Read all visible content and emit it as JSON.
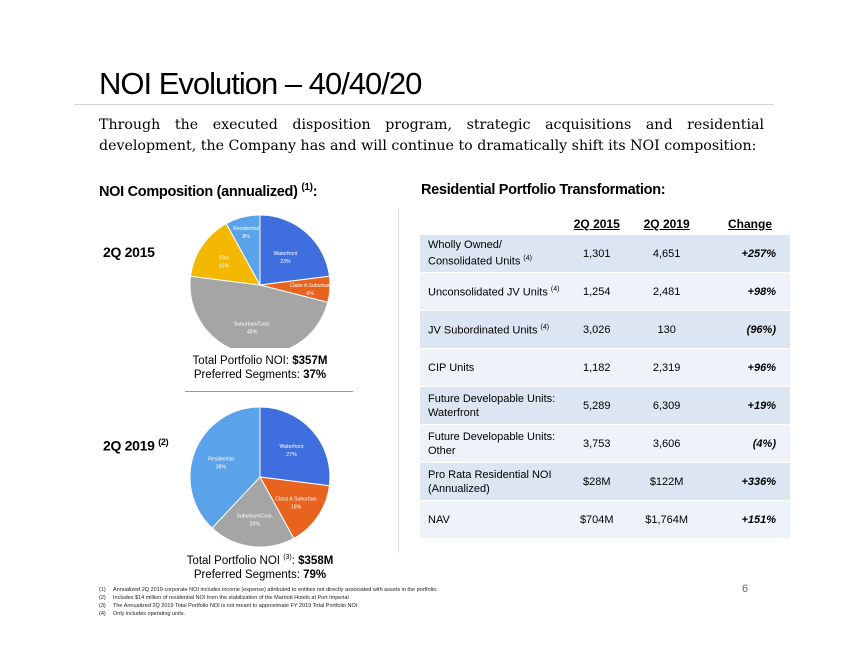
{
  "title": "NOI Evolution – 40/40/20",
  "intro": "Through the executed disposition program, strategic acquisitions and residential development, the Company has and will continue to dramatically shift its NOI composition:",
  "left_heading": "NOI Composition (annualized)",
  "left_heading_note": "(1)",
  "left_heading_colon": ":",
  "period1": "2Q 2015",
  "period2": "2Q 2019",
  "period2_note": "(2)",
  "pie1_caption": {
    "line1_prefix": "Total Portfolio NOI: ",
    "line1_value": "$357M",
    "line2_prefix": "Preferred Segments: ",
    "line2_value": "37%"
  },
  "pie2_caption": {
    "line1_prefix": "Total Portfolio NOI ",
    "line1_note": "(3)",
    "line1_colon": ": ",
    "line1_value": "$358M",
    "line2_prefix": "Preferred Segments: ",
    "line2_value": "79%"
  },
  "right_heading": "Residential Portfolio Transformation:",
  "table": {
    "headers": [
      "2Q 2015",
      "2Q 2019",
      "Change"
    ],
    "rows": [
      {
        "label": "Wholly Owned/ Consolidated Units",
        "note": "(4)",
        "v1": "1,301",
        "v2": "4,651",
        "change": "+257%"
      },
      {
        "label": "Unconsolidated JV Units",
        "note": "(4)",
        "v1": "1,254",
        "v2": "2,481",
        "change": "+98%"
      },
      {
        "label": "JV Subordinated Units",
        "note": "(4)",
        "v1": "3,026",
        "v2": "130",
        "change": "(96%)"
      },
      {
        "label": "CIP Units",
        "note": "",
        "v1": "1,182",
        "v2": "2,319",
        "change": "+96%"
      },
      {
        "label": "Future Developable Units: Waterfront",
        "note": "",
        "v1": "5,289",
        "v2": "6,309",
        "change": "+19%"
      },
      {
        "label": "Future Developable Units: Other",
        "note": "",
        "v1": "3,753",
        "v2": "3,606",
        "change": "(4%)"
      },
      {
        "label": "Pro Rata Residential NOI (Annualized)",
        "note": "",
        "v1": "$28M",
        "v2": "$122M",
        "change": "+336%"
      },
      {
        "label": "NAV",
        "note": "",
        "v1": "$704M",
        "v2": "$1,764M",
        "change": "+151%"
      }
    ]
  },
  "footnotes": [
    {
      "num": "(1)",
      "text": "Annualized 2Q 2019 corporate NOI includes income (expense) attributed to entities not directly associated with assets in the portfolio."
    },
    {
      "num": "(2)",
      "text": "Includes $14 million of residential NOI from the stabilization of the Marriott Hotels at Port Imperial"
    },
    {
      "num": "(3)",
      "text": "The Annualized 2Q 2019 Total Portfolio NOI is not meant to approximate FY 2019 Total Portfolio NOI."
    },
    {
      "num": "(4)",
      "text": "Only includes operating units."
    }
  ],
  "page_number": "6",
  "chart_data": [
    {
      "type": "pie",
      "title": "2Q 2015",
      "slices": [
        {
          "label": "Waterfront",
          "value": 23,
          "display": "23%",
          "color": "#3f6fde"
        },
        {
          "label": "Class A Suburban",
          "value": 6,
          "display": "6%",
          "color": "#e8641e"
        },
        {
          "label": "Suburban/Corp.",
          "value": 48,
          "display": "48%",
          "color": "#a5a5a5"
        },
        {
          "label": "Flex",
          "value": 15,
          "display": "15%",
          "color": "#f5b800"
        },
        {
          "label": "Residential",
          "value": 8,
          "display": "8%",
          "color": "#5aa2ea"
        }
      ]
    },
    {
      "type": "pie",
      "title": "2Q 2019",
      "slices": [
        {
          "label": "Waterfront",
          "value": 27,
          "display": "27%",
          "color": "#3f6fde"
        },
        {
          "label": "Class A Suburban",
          "value": 15,
          "display": "15%",
          "color": "#e8641e"
        },
        {
          "label": "Suburban/Corp.",
          "value": 20,
          "display": "20%",
          "color": "#a5a5a5"
        },
        {
          "label": "Residential",
          "value": 38,
          "display": "38%",
          "color": "#5aa2ea"
        }
      ]
    }
  ]
}
